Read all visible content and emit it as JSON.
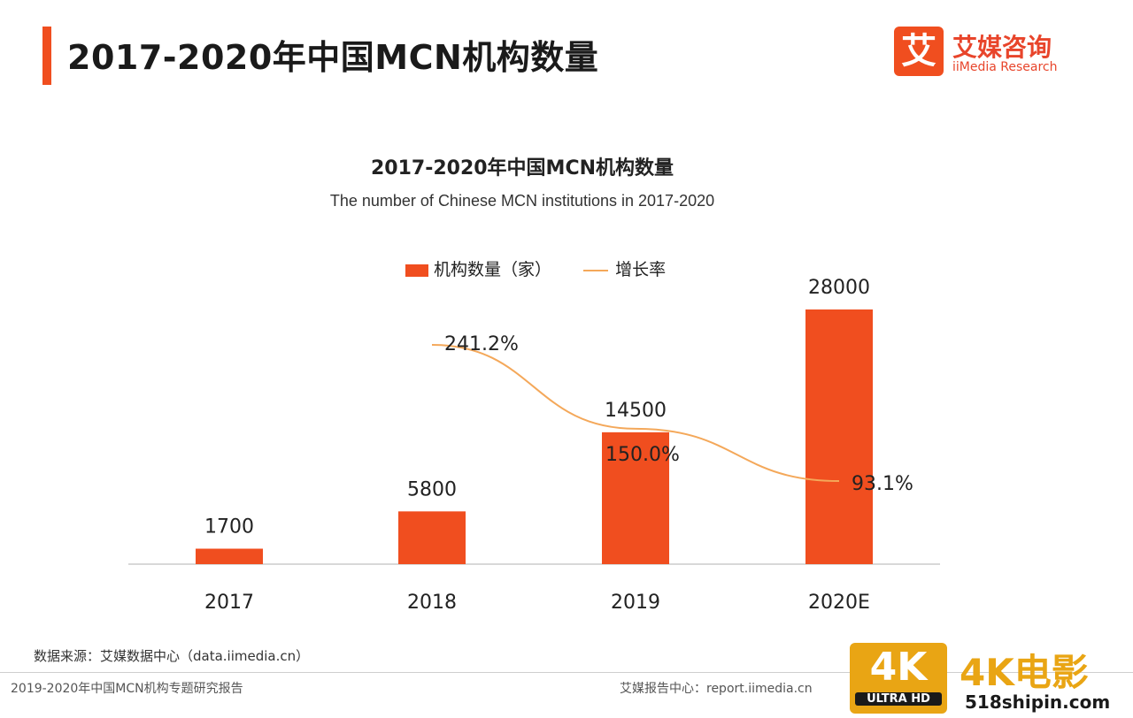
{
  "header": {
    "title": "2017-2020年中国MCN机构数量",
    "logo_mark": "艾",
    "logo_cn": "艾媒咨询",
    "logo_en": "iiMedia Research"
  },
  "chart_data": {
    "type": "bar",
    "title": "2017-2020年中国MCN机构数量",
    "subtitle": "The number of Chinese MCN institutions in 2017-2020",
    "categories": [
      "2017",
      "2018",
      "2019",
      "2020E"
    ],
    "series": [
      {
        "name": "机构数量（家）",
        "type": "bar",
        "values": [
          1700,
          5800,
          14500,
          28000
        ],
        "labels": [
          "1700",
          "5800",
          "14500",
          "28000"
        ],
        "color": "#f04e1f"
      },
      {
        "name": "增长率",
        "type": "line",
        "values": [
          null,
          241.2,
          150.0,
          93.1
        ],
        "labels": [
          "",
          "241.2%",
          "150.0%",
          "93.1%"
        ],
        "color": "#f4a85a"
      }
    ],
    "ylim": [
      0,
      30000
    ],
    "legend": "top-center",
    "grid": false
  },
  "source": "数据来源：艾媒数据中心（data.iimedia.cn）",
  "footer": {
    "left": "2019-2020年中国MCN机构专题研究报告",
    "right": "艾媒报告中心：report.iimedia.cn"
  },
  "watermark": {
    "badge": "4K",
    "badge_sub": "ULTRA HD",
    "text": "4K电影",
    "url": "518shipin.com"
  }
}
